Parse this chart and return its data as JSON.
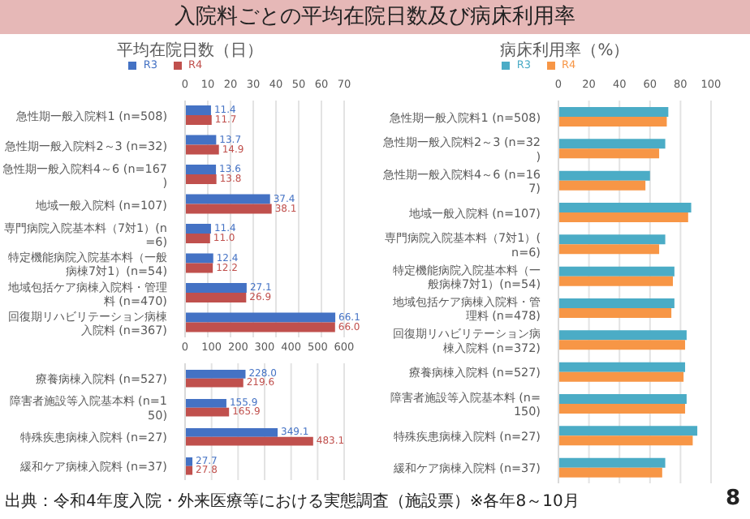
{
  "chart_data": [
    {
      "type": "bar",
      "orientation": "horizontal",
      "title": "入院料ごとの平均在院日数及び病床利用率",
      "subtitle": "平均在院日数（日）",
      "categories": [
        "急性期一般入院料1 (n=508)",
        "急性期一般入院料2～3 (n=32)",
        "急性期一般入院料4～6 (n=167)",
        "地域一般入院料 (n=107)",
        "専門病院入院基本料（7対1）(n=6)",
        "特定機能病院入院基本料（一般病棟7対1）(n=54)",
        "地域包括ケア病棟入院料・管理料 (n=470)",
        "回復期リハビリテーション病棟入院料 (n=367)"
      ],
      "series": [
        {
          "name": "R3",
          "color": "#4472c4",
          "values": [
            11.4,
            13.7,
            13.6,
            37.4,
            11.4,
            12.4,
            27.1,
            66.1
          ],
          "value_labels": [
            "11.4",
            "13.7",
            "13.6",
            "37.4",
            "11.4",
            "12.4",
            "27.1",
            "66.1"
          ]
        },
        {
          "name": "R4",
          "color": "#c0504d",
          "values": [
            11.7,
            14.9,
            13.8,
            38.1,
            11.0,
            12.2,
            26.9,
            66.0
          ],
          "value_labels": [
            "11.7",
            "14.9",
            "13.8",
            "38.1",
            "11.0",
            "12.2",
            "26.9",
            "66.0"
          ]
        }
      ],
      "xlim": [
        0,
        70
      ],
      "xticks": [
        0,
        10,
        20,
        30,
        40,
        50,
        60,
        70
      ],
      "grid": "x",
      "legend": "top"
    },
    {
      "type": "bar",
      "orientation": "horizontal",
      "categories": [
        "療養病棟入院料 (n=527)",
        "障害者施設等入院基本料 (n=150)",
        "特殊疾患病棟入院料 (n=27)",
        "緩和ケア病棟入院料 (n=37)"
      ],
      "series": [
        {
          "color": "#4472c4",
          "values": [
            228.0,
            155.9,
            349.1,
            27.7
          ],
          "value_labels": [
            "228.0",
            "155.9",
            "349.1",
            "27.7"
          ]
        },
        {
          "color": "#c0504d",
          "values": [
            219.6,
            165.9,
            483.1,
            27.8
          ],
          "value_labels": [
            "219.6",
            "165.9",
            "483.1",
            "27.8"
          ]
        }
      ],
      "xlim": [
        0,
        600
      ],
      "xticks": [
        0,
        100,
        200,
        300,
        400,
        500,
        600
      ],
      "grid": "x",
      "annotations": [
        "出典：令和4年度入院・外来医療等における実態調査（施設票）※各年8～10月"
      ]
    },
    {
      "type": "bar",
      "orientation": "horizontal",
      "title": "病床利用率（%）",
      "categories": [
        "急性期一般入院料1 (n=508)",
        "急性期一般入院料2～3 (n=32)",
        "急性期一般入院料4～6 (n=167)",
        "地域一般入院料 (n=107)",
        "専門病院入院基本料（7対1）(n=6)",
        "特定機能病院入院基本料（一般病棟7対1）(n=54)",
        "地域包括ケア病棟入院料・管理料 (n=478)",
        "回復期リハビリテーション病棟入院料 (n=372)",
        "療養病棟入院料 (n=527)",
        "障害者施設等入院基本料 (n=150)",
        "特殊疾患病棟入院料 (n=27)",
        "緩和ケア病棟入院料 (n=37)"
      ],
      "series": [
        {
          "name": "R3",
          "color": "#4bacc6",
          "values": [
            72,
            70,
            60,
            87,
            70,
            76,
            76,
            84,
            83,
            84,
            91,
            70
          ]
        },
        {
          "name": "R4",
          "color": "#f79646",
          "values": [
            71,
            66,
            57,
            85,
            66,
            75,
            74,
            83,
            82,
            83,
            88,
            68
          ]
        }
      ],
      "xlim": [
        0,
        100
      ],
      "xticks": [
        0,
        20,
        40,
        60,
        80,
        100
      ],
      "grid": "x",
      "legend": "top",
      "annotations": [
        "8"
      ]
    }
  ]
}
